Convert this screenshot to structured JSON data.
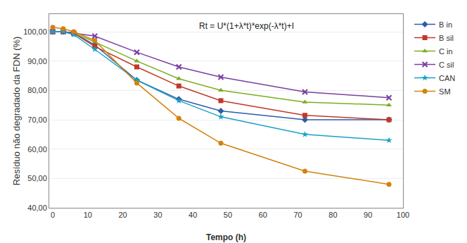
{
  "chart_data": {
    "type": "line",
    "xlabel": "Tempo (h)",
    "ylabel": "Resíduo não degradado da FDN (%)",
    "annotation": "Rt = U*(1+λ*t)*exp(-λ*t)+I",
    "x": [
      0,
      3,
      6,
      12,
      24,
      36,
      48,
      72,
      96
    ],
    "series": [
      {
        "name": "B in",
        "color": "#2E5DA6",
        "marker": "diamond",
        "values": [
          100.0,
          100.0,
          99.5,
          95.5,
          83.5,
          77.0,
          73.0,
          70.0,
          70.0
        ]
      },
      {
        "name": "B sil",
        "color": "#C0392B",
        "marker": "square",
        "values": [
          100.0,
          100.0,
          99.5,
          95.0,
          88.0,
          81.5,
          76.5,
          71.5,
          70.0
        ]
      },
      {
        "name": "C in",
        "color": "#7CAE23",
        "marker": "triangle-up",
        "values": [
          100.0,
          100.0,
          99.5,
          96.5,
          90.0,
          84.0,
          80.0,
          76.0,
          75.0
        ]
      },
      {
        "name": "C sil",
        "color": "#7B3FA0",
        "marker": "x-thin-open",
        "values": [
          100.0,
          100.0,
          99.5,
          98.5,
          93.0,
          88.0,
          84.5,
          79.5,
          77.5
        ]
      },
      {
        "name": "CAN",
        "color": "#1BA1C5",
        "marker": "star",
        "values": [
          100.0,
          100.0,
          99.0,
          94.0,
          83.5,
          76.5,
          71.0,
          65.0,
          63.0
        ]
      },
      {
        "name": "SM",
        "color": "#D4820A",
        "marker": "circle",
        "values": [
          101.5,
          101.0,
          100.0,
          97.0,
          82.5,
          70.5,
          62.0,
          52.5,
          48.0
        ]
      }
    ],
    "xlim": [
      -1,
      100
    ],
    "ylim": [
      40.0,
      106.0
    ],
    "xticks": [
      0,
      10,
      20,
      30,
      40,
      50,
      60,
      70,
      80,
      90,
      100
    ],
    "yticks": [
      {
        "value": 40.0,
        "label": "40,00"
      },
      {
        "value": 50.0,
        "label": "50,00"
      },
      {
        "value": 60.0,
        "label": "60,00"
      },
      {
        "value": 70.0,
        "label": "70,00"
      },
      {
        "value": 80.0,
        "label": "80,00"
      },
      {
        "value": 90.0,
        "label": "90,00"
      },
      {
        "value": 100.0,
        "label": "100,00"
      }
    ],
    "grid": "y",
    "legend": "right"
  }
}
